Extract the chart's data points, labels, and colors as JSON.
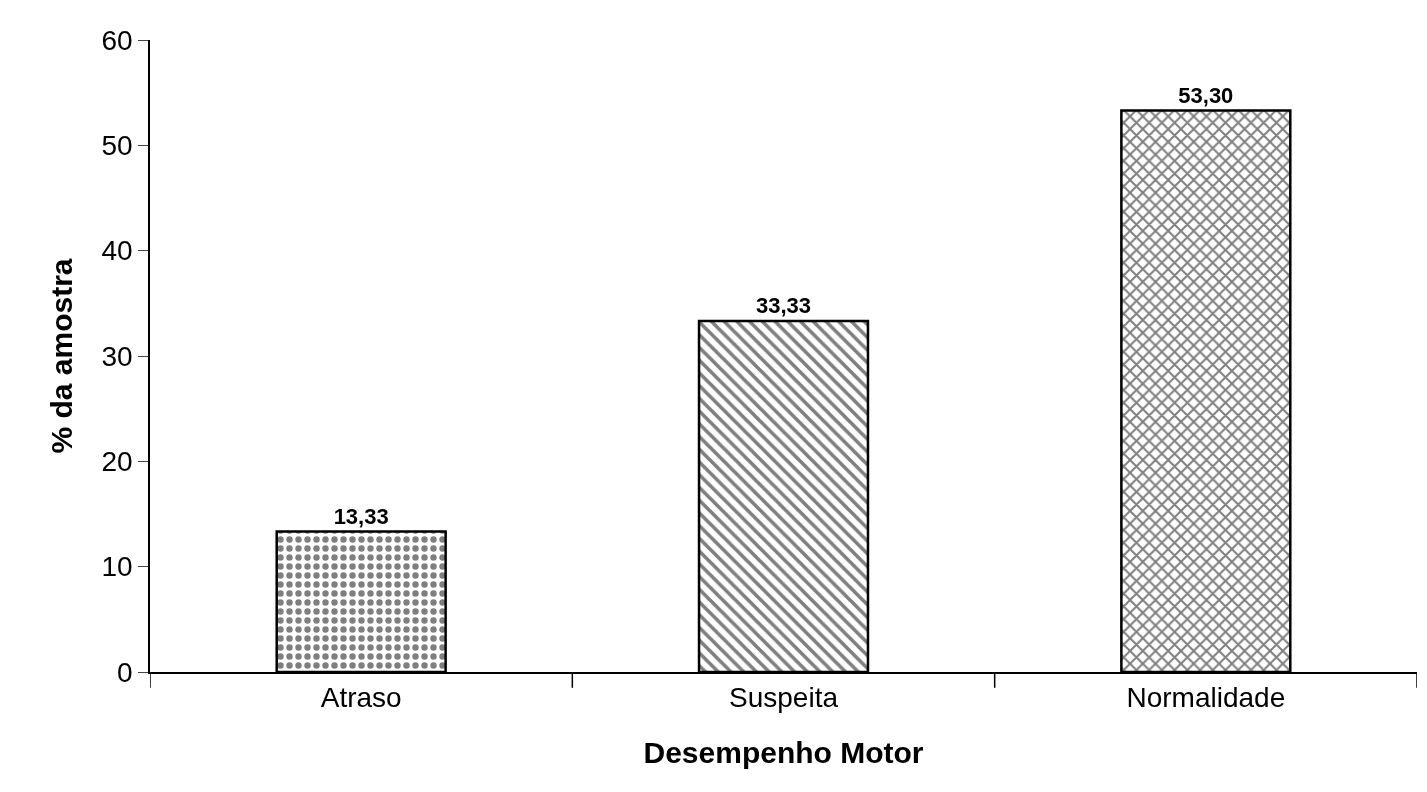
{
  "chart_data": {
    "type": "bar",
    "xlabel": "Desempenho Motor",
    "ylabel": "% da amostra",
    "categories": [
      "Atraso",
      "Suspeita",
      "Normalidade"
    ],
    "values": [
      13.33,
      33.33,
      53.3
    ],
    "value_labels": [
      "13,33",
      "33,33",
      "53,30"
    ],
    "colors": [
      "#000000",
      "#000000",
      "#000000"
    ],
    "ylim": [
      0,
      60
    ],
    "yticks": [
      0,
      10,
      20,
      30,
      40,
      50,
      60
    ],
    "legend": false
  }
}
